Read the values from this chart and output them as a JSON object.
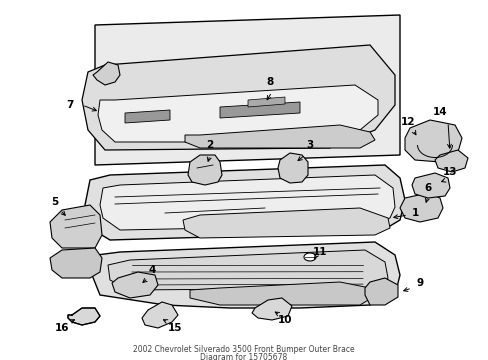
{
  "bg_color": "#ffffff",
  "line_color": "#000000",
  "fill_light": "#e8e8e8",
  "fill_mid": "#d0d0d0",
  "fill_dark": "#b8b8b8",
  "fill_box": "#ebebeb",
  "title_line1": "2002 Chevrolet Silverado 3500 Front Bumper Outer Brace",
  "title_line2": "Diagram for 15705678"
}
